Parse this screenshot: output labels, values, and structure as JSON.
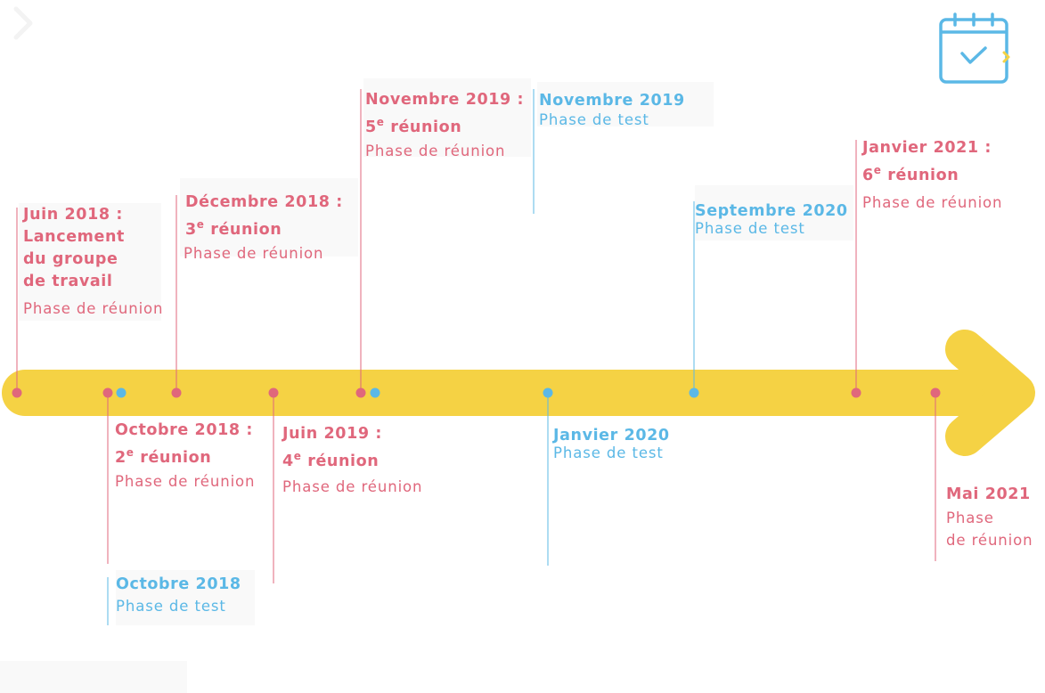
{
  "colors": {
    "meeting": "#e0677c",
    "test": "#5bb8e6",
    "arrow": "#f5d244"
  },
  "calendar_icon": "calendar-check-icon",
  "events": [
    {
      "id": "juin2018",
      "type": "meeting",
      "date": "Juin 2018 :",
      "date_l2": "Lancement",
      "date_l3": "du groupe",
      "date_l4": "de travail",
      "phase": "Phase de réunion"
    },
    {
      "id": "oct2018",
      "type": "meeting",
      "date": "Octobre 2018 :",
      "num": "2",
      "sup": "e",
      "tail": " réunion",
      "phase": "Phase de réunion"
    },
    {
      "id": "oct2018t",
      "type": "test",
      "date": "Octobre 2018",
      "phase": "Phase de test"
    },
    {
      "id": "dec2018",
      "type": "meeting",
      "date": "Décembre 2018 :",
      "num": "3",
      "sup": "e",
      "tail": " réunion",
      "phase": "Phase de réunion"
    },
    {
      "id": "juin2019",
      "type": "meeting",
      "date": "Juin 2019 :",
      "num": "4",
      "sup": "e",
      "tail": " réunion",
      "phase": "Phase de réunion"
    },
    {
      "id": "nov2019",
      "type": "meeting",
      "date": "Novembre 2019 :",
      "num": "5",
      "sup": "e",
      "tail": " réunion",
      "phase": "Phase de réunion"
    },
    {
      "id": "nov2019t",
      "type": "test",
      "date": "Novembre 2019",
      "phase": "Phase de test"
    },
    {
      "id": "jan2020",
      "type": "test",
      "date": "Janvier 2020",
      "phase": "Phase de test"
    },
    {
      "id": "sep2020",
      "type": "test",
      "date": "Septembre 2020",
      "phase": "Phase de test"
    },
    {
      "id": "jan2021",
      "type": "meeting",
      "date": "Janvier 2021 :",
      "num": "6",
      "sup": "e",
      "tail": " réunion",
      "phase": "Phase de réunion"
    },
    {
      "id": "mai2021",
      "type": "meeting",
      "date": "Mai 2021",
      "phase": "Phase",
      "phase_l2": "de réunion"
    }
  ]
}
